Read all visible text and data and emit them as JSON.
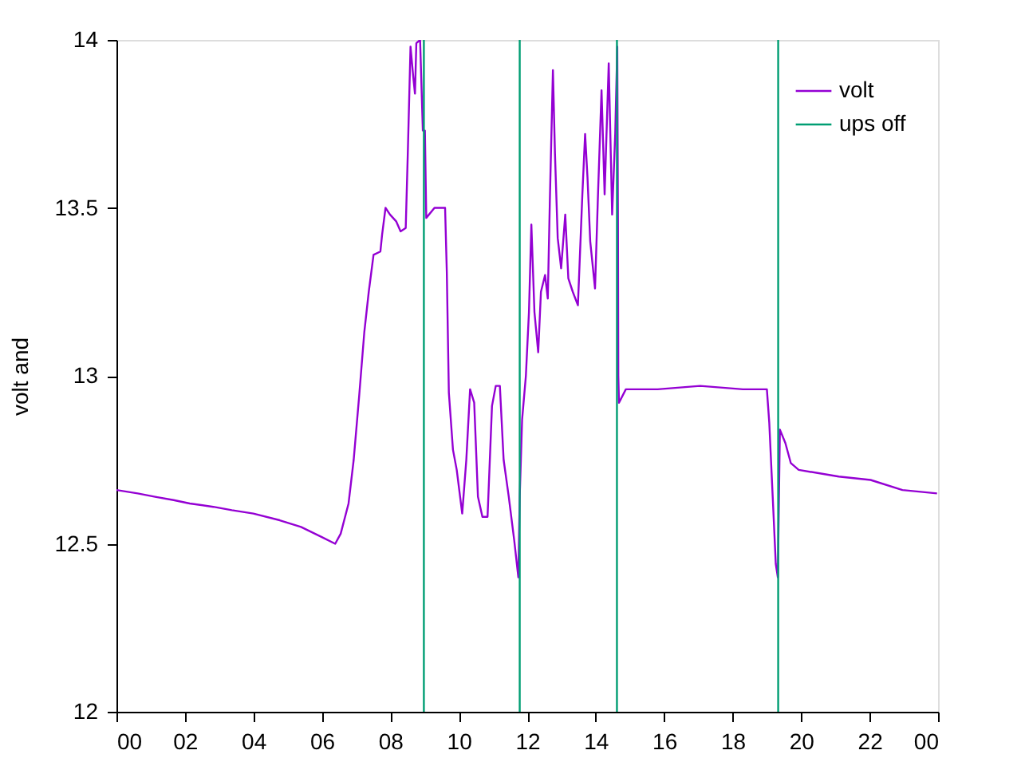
{
  "chart_data": {
    "type": "line",
    "ylabel": "volt and",
    "xlim": [
      0,
      24
    ],
    "ylim": [
      12,
      14
    ],
    "xticks": [
      {
        "value": 0,
        "label": "00"
      },
      {
        "value": 2,
        "label": "02"
      },
      {
        "value": 4,
        "label": "04"
      },
      {
        "value": 6,
        "label": "06"
      },
      {
        "value": 8,
        "label": "08"
      },
      {
        "value": 10,
        "label": "10"
      },
      {
        "value": 12,
        "label": "12"
      },
      {
        "value": 14,
        "label": "14"
      },
      {
        "value": 16,
        "label": "16"
      },
      {
        "value": 18,
        "label": "18"
      },
      {
        "value": 20,
        "label": "20"
      },
      {
        "value": 22,
        "label": "22"
      },
      {
        "value": 24,
        "label": "00"
      }
    ],
    "yticks": [
      12,
      12.5,
      13,
      13.5,
      14
    ],
    "grid": false,
    "legend": "top right",
    "marker": "none",
    "line_style": "solid",
    "series": [
      {
        "name": "volt",
        "color": "#9400d3",
        "x": [
          0,
          0.62,
          1.13,
          1.67,
          2.14,
          2.83,
          3.37,
          4.0,
          4.77,
          5.39,
          6.0,
          6.39,
          6.55,
          6.78,
          6.93,
          7.09,
          7.24,
          7.37,
          7.51,
          7.71,
          7.76,
          7.86,
          7.99,
          8.17,
          8.3,
          8.45,
          8.51,
          8.59,
          8.67,
          8.72,
          8.76,
          8.87,
          8.95,
          9.01,
          9.05,
          9.29,
          9.6,
          9.65,
          9.71,
          9.83,
          9.94,
          10.1,
          10.22,
          10.33,
          10.45,
          10.56,
          10.69,
          10.84,
          10.97,
          11.08,
          11.2,
          11.31,
          11.46,
          11.62,
          11.74,
          11.78,
          11.85,
          11.96,
          12.05,
          12.12,
          12.21,
          12.32,
          12.4,
          12.52,
          12.6,
          12.66,
          12.75,
          12.81,
          12.89,
          12.99,
          13.11,
          13.2,
          13.33,
          13.48,
          13.61,
          13.69,
          13.76,
          13.84,
          13.98,
          14.07,
          14.17,
          14.26,
          14.38,
          14.48,
          14.57,
          14.63,
          14.65,
          14.66,
          14.68,
          14.88,
          15.81,
          17.05,
          18.3,
          19.0,
          19.07,
          19.17,
          19.26,
          19.32,
          19.38,
          19.54,
          19.7,
          19.93,
          21.1,
          22.03,
          22.96,
          23.97
        ],
        "values": [
          12.66,
          12.65,
          12.64,
          12.63,
          12.62,
          12.61,
          12.6,
          12.59,
          12.57,
          12.55,
          12.52,
          12.5,
          12.53,
          12.62,
          12.75,
          12.94,
          13.13,
          13.25,
          13.36,
          13.37,
          13.42,
          13.5,
          13.48,
          13.46,
          13.43,
          13.44,
          13.66,
          13.98,
          13.89,
          13.84,
          13.99,
          14.0,
          13.73,
          13.73,
          13.47,
          13.5,
          13.5,
          13.31,
          12.95,
          12.78,
          12.72,
          12.59,
          12.75,
          12.96,
          12.92,
          12.64,
          12.58,
          12.58,
          12.91,
          12.97,
          12.97,
          12.75,
          12.64,
          12.51,
          12.4,
          12.64,
          12.87,
          13.0,
          13.19,
          13.45,
          13.19,
          13.07,
          13.25,
          13.3,
          13.23,
          13.52,
          13.91,
          13.66,
          13.41,
          13.32,
          13.48,
          13.29,
          13.25,
          13.21,
          13.54,
          13.72,
          13.59,
          13.4,
          13.26,
          13.55,
          13.85,
          13.54,
          13.93,
          13.48,
          13.72,
          13.98,
          13.46,
          13.0,
          12.92,
          12.96,
          12.96,
          12.97,
          12.96,
          12.96,
          12.86,
          12.64,
          12.44,
          12.4,
          12.84,
          12.8,
          12.74,
          12.72,
          12.7,
          12.69,
          12.66,
          12.65
        ]
      },
      {
        "name": "ups off",
        "color": "#009e73",
        "x": [
          8.98,
          8.98,
          null,
          11.78,
          11.78,
          null,
          14.62,
          14.62,
          null,
          19.33,
          19.33
        ],
        "values": [
          12,
          14,
          null,
          12,
          14,
          null,
          12,
          14,
          null,
          12,
          14
        ]
      }
    ]
  }
}
